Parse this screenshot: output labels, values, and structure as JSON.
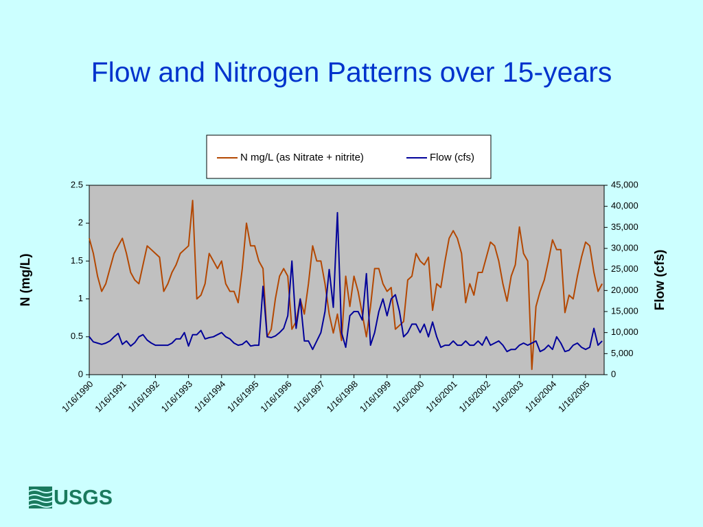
{
  "chart_data": {
    "type": "line",
    "title": "Flow and Nitrogen Patterns over 15-years",
    "ylabel": "N  (mg/L)",
    "y2label": "Flow (cfs)",
    "logo": "USGS",
    "x": [
      1990,
      1990.125,
      1990.25,
      1990.375,
      1990.5,
      1990.625,
      1990.75,
      1990.875,
      1991,
      1991.125,
      1991.25,
      1991.375,
      1991.5,
      1991.625,
      1991.75,
      1991.875,
      1992,
      1992.125,
      1992.25,
      1992.375,
      1992.5,
      1992.625,
      1992.75,
      1992.875,
      1993,
      1993.125,
      1993.25,
      1993.375,
      1993.5,
      1993.625,
      1993.75,
      1993.875,
      1994,
      1994.125,
      1994.25,
      1994.375,
      1994.5,
      1994.625,
      1994.75,
      1994.875,
      1995,
      1995.125,
      1995.25,
      1995.375,
      1995.5,
      1995.625,
      1995.75,
      1995.875,
      1996,
      1996.125,
      1996.25,
      1996.375,
      1996.5,
      1996.625,
      1996.75,
      1996.875,
      1997,
      1997.125,
      1997.25,
      1997.375,
      1997.5,
      1997.625,
      1997.75,
      1997.875,
      1998,
      1998.125,
      1998.25,
      1998.375,
      1998.5,
      1998.625,
      1998.75,
      1998.875,
      1999,
      1999.125,
      1999.25,
      1999.375,
      1999.5,
      1999.625,
      1999.75,
      1999.875,
      2000,
      2000.125,
      2000.25,
      2000.375,
      2000.5,
      2000.625,
      2000.75,
      2000.875,
      2001,
      2001.125,
      2001.25,
      2001.375,
      2001.5,
      2001.625,
      2001.75,
      2001.875,
      2002,
      2002.125,
      2002.25,
      2002.375,
      2002.5,
      2002.625,
      2002.75,
      2002.875,
      2003,
      2003.125,
      2003.25,
      2003.375,
      2003.5,
      2003.625,
      2003.75,
      2003.875,
      2004,
      2004.125,
      2004.25,
      2004.375,
      2004.5,
      2004.625,
      2004.75,
      2004.875,
      2005,
      2005.125,
      2005.25,
      2005.375,
      2005.5
    ],
    "xlim": [
      1990,
      2005.56
    ],
    "xticks": [
      {
        "value": 1990,
        "label": "1/16/1990"
      },
      {
        "value": 1991,
        "label": "1/16/1991"
      },
      {
        "value": 1992,
        "label": "1/16/1992"
      },
      {
        "value": 1993,
        "label": "1/16/1993"
      },
      {
        "value": 1994,
        "label": "1/16/1994"
      },
      {
        "value": 1995,
        "label": "1/16/1995"
      },
      {
        "value": 1996,
        "label": "1/16/1996"
      },
      {
        "value": 1997,
        "label": "1/16/1997"
      },
      {
        "value": 1998,
        "label": "1/16/1998"
      },
      {
        "value": 1999,
        "label": "1/16/1999"
      },
      {
        "value": 2000,
        "label": "1/16/2000"
      },
      {
        "value": 2001,
        "label": "1/16/2001"
      },
      {
        "value": 2002,
        "label": "1/16/2002"
      },
      {
        "value": 2003,
        "label": "1/16/2003"
      },
      {
        "value": 2004,
        "label": "1/16/2004"
      },
      {
        "value": 2005,
        "label": "1/16/2005"
      }
    ],
    "ylim": [
      0,
      2.5
    ],
    "yticks": [
      0,
      0.5,
      1,
      1.5,
      2,
      2.5
    ],
    "y2lim": [
      0,
      45000
    ],
    "y2ticks": [
      0,
      {
        "value": 5000,
        "label": "5,000"
      },
      {
        "value": 10000,
        "label": "10,000"
      },
      {
        "value": 15000,
        "label": "15,000"
      },
      {
        "value": 20000,
        "label": "20,000"
      },
      {
        "value": 25000,
        "label": "25,000"
      },
      {
        "value": 30000,
        "label": "30,000"
      },
      {
        "value": 35000,
        "label": "35,000"
      },
      {
        "value": 40000,
        "label": "40,000"
      },
      {
        "value": 45000,
        "label": "45,000"
      }
    ],
    "legend": "top",
    "series": [
      {
        "name": "N mg/L (as Nitrate + nitrite)",
        "color": "#b34700",
        "values": [
          1.8,
          1.6,
          1.3,
          1.1,
          1.2,
          1.4,
          1.6,
          1.7,
          1.8,
          1.6,
          1.35,
          1.25,
          1.2,
          1.45,
          1.7,
          1.65,
          1.6,
          1.55,
          1.1,
          1.2,
          1.35,
          1.45,
          1.6,
          1.65,
          1.7,
          2.3,
          1.0,
          1.05,
          1.2,
          1.6,
          1.5,
          1.4,
          1.5,
          1.2,
          1.1,
          1.1,
          0.95,
          1.4,
          2.0,
          1.7,
          1.7,
          1.5,
          1.4,
          0.5,
          0.6,
          1.0,
          1.3,
          1.4,
          1.3,
          0.6,
          0.7,
          1.0,
          0.8,
          1.2,
          1.7,
          1.5,
          1.5,
          1.2,
          0.8,
          0.55,
          0.8,
          0.45,
          1.3,
          0.9,
          1.3,
          1.1,
          0.8,
          0.5,
          0.9,
          1.4,
          1.4,
          1.2,
          1.1,
          1.15,
          0.6,
          0.65,
          0.7,
          1.25,
          1.3,
          1.6,
          1.5,
          1.45,
          1.55,
          0.85,
          1.2,
          1.15,
          1.5,
          1.8,
          1.9,
          1.8,
          1.6,
          0.95,
          1.2,
          1.05,
          1.35,
          1.35,
          1.55,
          1.75,
          1.7,
          1.5,
          1.2,
          0.97,
          1.3,
          1.45,
          1.95,
          1.6,
          1.5,
          0.07,
          0.9,
          1.1,
          1.25,
          1.5,
          1.78,
          1.65,
          1.65,
          0.82,
          1.05,
          1.0,
          1.3,
          1.55,
          1.75,
          1.7,
          1.35,
          1.1,
          1.2
        ]
      },
      {
        "name": "Flow (cfs)",
        "color": "#000099",
        "axis": "y2",
        "values": [
          9000,
          7800,
          7500,
          7200,
          7500,
          8000,
          9000,
          9800,
          7200,
          8000,
          6800,
          7600,
          9000,
          9500,
          8200,
          7500,
          7000,
          7000,
          7000,
          7000,
          7500,
          8500,
          8500,
          10000,
          6800,
          9500,
          9500,
          10500,
          8500,
          8800,
          9000,
          9500,
          10000,
          9000,
          8500,
          7500,
          7000,
          7200,
          8000,
          6800,
          7000,
          7000,
          21000,
          9000,
          8800,
          9200,
          10000,
          11000,
          14000,
          27000,
          11000,
          18000,
          8000,
          8000,
          6000,
          8000,
          10000,
          15000,
          25000,
          16000,
          38500,
          10000,
          6500,
          14000,
          15000,
          15000,
          13000,
          24000,
          7000,
          10000,
          15000,
          18000,
          14000,
          18000,
          19000,
          15000,
          9000,
          10000,
          12000,
          12000,
          10000,
          12000,
          9000,
          12500,
          9000,
          6500,
          7000,
          7000,
          8000,
          7000,
          7000,
          8000,
          7000,
          7000,
          8000,
          7000,
          9000,
          7000,
          7500,
          8000,
          7000,
          5500,
          6000,
          6000,
          7000,
          7500,
          7000,
          7500,
          8000,
          5500,
          6000,
          7000,
          6000,
          9000,
          7500,
          5500,
          5800,
          7000,
          7500,
          6500,
          6000,
          6500,
          11000,
          7000,
          8000
        ]
      }
    ]
  }
}
